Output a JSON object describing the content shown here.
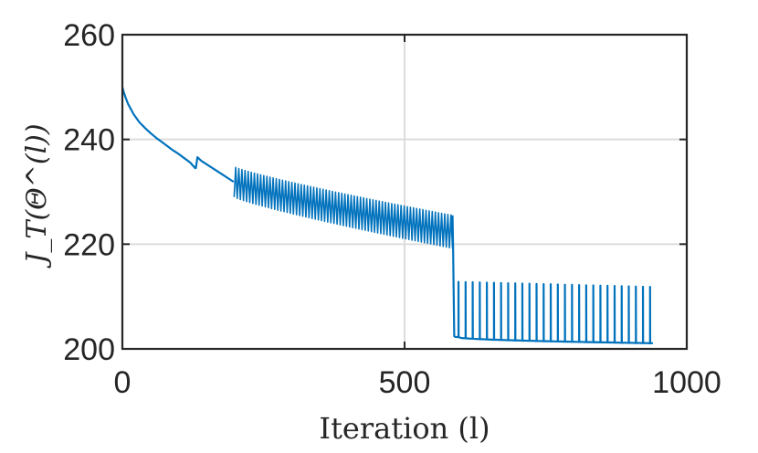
{
  "chart_data": {
    "type": "line",
    "title": "",
    "xlabel": "Iteration (l)",
    "ylabel": "J_T(Θ^(l))",
    "xlim": [
      0,
      1000
    ],
    "ylim": [
      200,
      260
    ],
    "xticks": [
      0,
      500,
      1000
    ],
    "yticks": [
      200,
      220,
      240,
      260
    ],
    "xtick_labels": [
      "0",
      "500",
      "1000"
    ],
    "ytick_labels": [
      "200",
      "220",
      "240",
      "260"
    ],
    "grid": true,
    "series_color": "#0072BD",
    "series": [
      {
        "name": "",
        "segments": [
          {
            "kind": "smooth",
            "points": [
              [
                0,
                250
              ],
              [
                2,
                249.2
              ],
              [
                5,
                248.2
              ],
              [
                10,
                246.8
              ],
              [
                20,
                244.8
              ],
              [
                30,
                243.3
              ],
              [
                40,
                242.2
              ],
              [
                50,
                241.2
              ],
              [
                60,
                240.3
              ],
              [
                70,
                239.5
              ],
              [
                80,
                238.7
              ],
              [
                90,
                237.9
              ],
              [
                100,
                237.2
              ],
              [
                110,
                236.4
              ],
              [
                120,
                235.6
              ],
              [
                130,
                234.4
              ]
            ]
          },
          {
            "kind": "smooth",
            "points": [
              [
                130,
                234.4
              ],
              [
                133,
                236.6
              ],
              [
                140,
                235.9
              ],
              [
                150,
                235.2
              ],
              [
                160,
                234.5
              ],
              [
                170,
                233.8
              ],
              [
                180,
                233.1
              ],
              [
                190,
                232.4
              ],
              [
                197,
                231.9
              ]
            ]
          },
          {
            "kind": "oscillation",
            "x0": 198,
            "x1": 585,
            "lower0": 229.0,
            "lower1": 219.2,
            "upper0": 234.8,
            "upper1": 225.5,
            "steps": 140
          },
          {
            "kind": "drop",
            "points": [
              [
                585,
                225.5
              ],
              [
                586,
                219.2
              ],
              [
                588,
                202.3
              ]
            ]
          },
          {
            "kind": "spikes",
            "x0": 588,
            "x1": 940,
            "base0": 202.3,
            "base1": 201.1,
            "peak0": 212.8,
            "peak1": 211.8,
            "count": 28
          }
        ]
      }
    ]
  }
}
